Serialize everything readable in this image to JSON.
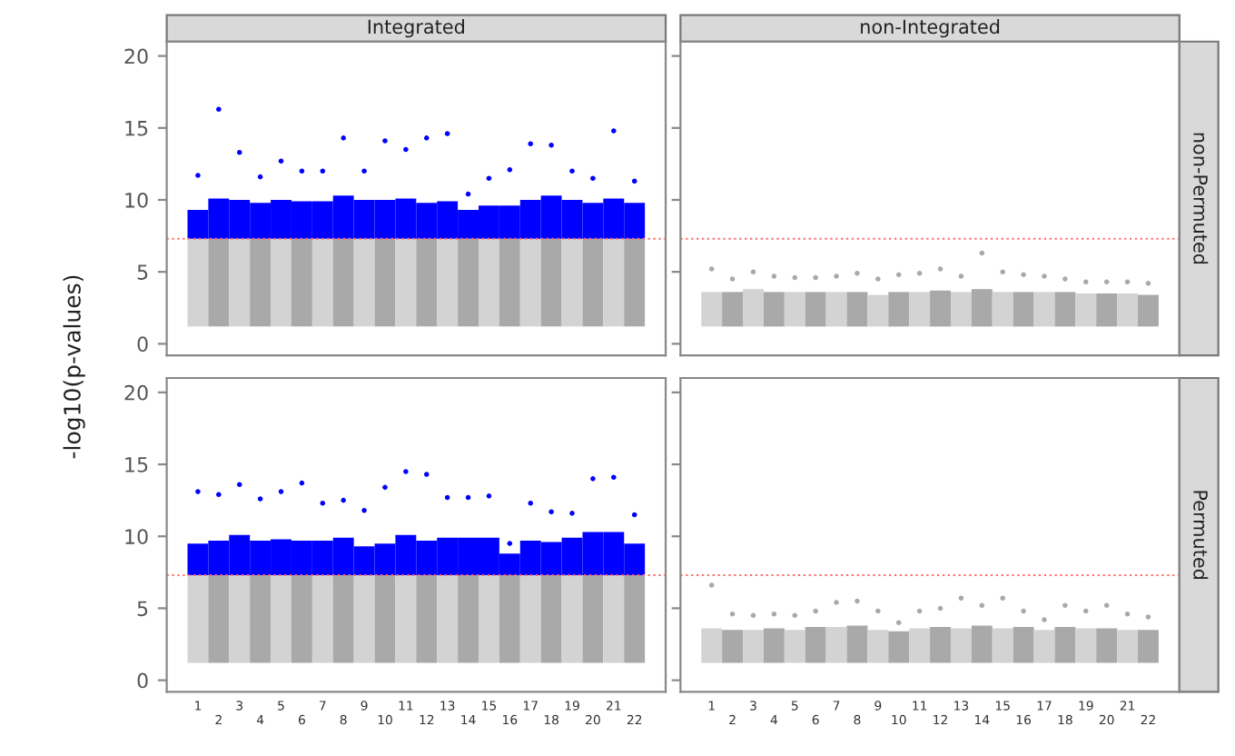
{
  "chart_data": [
    {
      "type": "bar",
      "title": "Integrated",
      "ylabel": "-log10(p-values)",
      "tick_labels": "y",
      "categories": [
        "1",
        "2",
        "3",
        "4",
        "5",
        "6",
        "7",
        "8",
        "9",
        "10",
        "11",
        "12",
        "13",
        "14",
        "15",
        "16",
        "17",
        "18",
        "19",
        "20",
        "21",
        "22"
      ],
      "ylim": [
        -0.8,
        21
      ],
      "yticks": [
        0,
        5,
        10,
        15,
        20
      ],
      "ref_lines": [
        {
          "axis": "y",
          "value": 7.3,
          "color": "#ff6a6a",
          "line_style": "dotted"
        }
      ],
      "series": [
        {
          "type": "bar",
          "base": [
            1.2,
            1.2,
            1.2,
            1.2,
            1.2,
            1.2,
            1.2,
            1.2,
            1.2,
            1.2,
            1.2,
            1.2,
            1.2,
            1.2,
            1.2,
            1.2,
            1.2,
            1.2,
            1.2,
            1.2,
            1.2,
            1.2
          ],
          "values": [
            6.1,
            6.1,
            6.1,
            6.1,
            6.1,
            6.1,
            6.1,
            6.1,
            6.1,
            6.1,
            6.1,
            6.1,
            6.1,
            6.1,
            6.1,
            6.1,
            6.1,
            6.1,
            6.1,
            6.1,
            6.1,
            6.1
          ],
          "colors": [
            "#d3d3d3",
            "#a9a9a9",
            "#d3d3d3",
            "#a9a9a9",
            "#d3d3d3",
            "#a9a9a9",
            "#d3d3d3",
            "#a9a9a9",
            "#d3d3d3",
            "#a9a9a9",
            "#d3d3d3",
            "#a9a9a9",
            "#d3d3d3",
            "#a9a9a9",
            "#d3d3d3",
            "#a9a9a9",
            "#d3d3d3",
            "#a9a9a9",
            "#d3d3d3",
            "#a9a9a9",
            "#d3d3d3",
            "#a9a9a9"
          ]
        },
        {
          "type": "bar",
          "color": "#0000ff",
          "base": [
            7.3,
            7.3,
            7.3,
            7.3,
            7.3,
            7.3,
            7.3,
            7.3,
            7.3,
            7.3,
            7.3,
            7.3,
            7.3,
            7.3,
            7.3,
            7.3,
            7.3,
            7.3,
            7.3,
            7.3,
            7.3,
            7.3
          ],
          "values": [
            2.0,
            2.8,
            2.7,
            2.5,
            2.7,
            2.6,
            2.6,
            3.0,
            2.7,
            2.7,
            2.8,
            2.5,
            2.6,
            2.0,
            2.3,
            2.3,
            2.7,
            3.0,
            2.7,
            2.5,
            2.8,
            2.5
          ]
        },
        {
          "type": "scatter",
          "color": "#0000ff",
          "values": [
            11.7,
            16.3,
            13.3,
            11.6,
            12.7,
            12.0,
            12.0,
            14.3,
            12.0,
            14.1,
            13.5,
            14.3,
            14.6,
            10.4,
            11.5,
            12.1,
            13.9,
            13.8,
            12.0,
            11.5,
            14.8,
            11.3
          ]
        }
      ]
    },
    {
      "type": "bar",
      "title": "non-Integrated",
      "annotations": [
        "non-Permuted"
      ],
      "tick_labels": false,
      "categories": [
        "1",
        "2",
        "3",
        "4",
        "5",
        "6",
        "7",
        "8",
        "9",
        "10",
        "11",
        "12",
        "13",
        "14",
        "15",
        "16",
        "17",
        "18",
        "19",
        "20",
        "21",
        "22"
      ],
      "ylim": [
        -0.8,
        21
      ],
      "yticks": [
        0,
        5,
        10,
        15,
        20
      ],
      "ref_lines": [
        {
          "axis": "y",
          "value": 7.3,
          "color": "#ff6a6a",
          "line_style": "dotted"
        }
      ],
      "series": [
        {
          "type": "bar",
          "base": [
            1.2,
            1.2,
            1.2,
            1.2,
            1.2,
            1.2,
            1.2,
            1.2,
            1.2,
            1.2,
            1.2,
            1.2,
            1.2,
            1.2,
            1.2,
            1.2,
            1.2,
            1.2,
            1.2,
            1.2,
            1.2,
            1.2
          ],
          "values": [
            2.4,
            2.4,
            2.6,
            2.4,
            2.4,
            2.4,
            2.4,
            2.4,
            2.2,
            2.4,
            2.4,
            2.5,
            2.4,
            2.6,
            2.4,
            2.4,
            2.4,
            2.4,
            2.3,
            2.3,
            2.3,
            2.2
          ],
          "colors": [
            "#d3d3d3",
            "#a9a9a9",
            "#d3d3d3",
            "#a9a9a9",
            "#d3d3d3",
            "#a9a9a9",
            "#d3d3d3",
            "#a9a9a9",
            "#d3d3d3",
            "#a9a9a9",
            "#d3d3d3",
            "#a9a9a9",
            "#d3d3d3",
            "#a9a9a9",
            "#d3d3d3",
            "#a9a9a9",
            "#d3d3d3",
            "#a9a9a9",
            "#d3d3d3",
            "#a9a9a9",
            "#d3d3d3",
            "#a9a9a9"
          ]
        },
        {
          "type": "scatter",
          "color": "#a9a9a9",
          "values": [
            5.2,
            4.5,
            5.0,
            4.7,
            4.6,
            4.6,
            4.7,
            4.9,
            4.5,
            4.8,
            4.9,
            5.2,
            4.7,
            6.3,
            5.0,
            4.8,
            4.7,
            4.5,
            4.3,
            4.3,
            4.3,
            4.2
          ]
        }
      ]
    },
    {
      "type": "bar",
      "tick_labels": true,
      "categories": [
        "1",
        "2",
        "3",
        "4",
        "5",
        "6",
        "7",
        "8",
        "9",
        "10",
        "11",
        "12",
        "13",
        "14",
        "15",
        "16",
        "17",
        "18",
        "19",
        "20",
        "21",
        "22"
      ],
      "ylim": [
        -0.8,
        21
      ],
      "yticks": [
        0,
        5,
        10,
        15,
        20
      ],
      "ref_lines": [
        {
          "axis": "y",
          "value": 7.3,
          "color": "#ff6a6a",
          "line_style": "dotted"
        }
      ],
      "series": [
        {
          "type": "bar",
          "base": [
            1.2,
            1.2,
            1.2,
            1.2,
            1.2,
            1.2,
            1.2,
            1.2,
            1.2,
            1.2,
            1.2,
            1.2,
            1.2,
            1.2,
            1.2,
            1.2,
            1.2,
            1.2,
            1.2,
            1.2,
            1.2,
            1.2
          ],
          "values": [
            6.1,
            6.1,
            6.1,
            6.1,
            6.1,
            6.1,
            6.1,
            6.1,
            6.1,
            6.1,
            6.1,
            6.1,
            6.1,
            6.1,
            6.1,
            6.1,
            6.1,
            6.1,
            6.1,
            6.1,
            6.1,
            6.1
          ],
          "colors": [
            "#d3d3d3",
            "#a9a9a9",
            "#d3d3d3",
            "#a9a9a9",
            "#d3d3d3",
            "#a9a9a9",
            "#d3d3d3",
            "#a9a9a9",
            "#d3d3d3",
            "#a9a9a9",
            "#d3d3d3",
            "#a9a9a9",
            "#d3d3d3",
            "#a9a9a9",
            "#d3d3d3",
            "#a9a9a9",
            "#d3d3d3",
            "#a9a9a9",
            "#d3d3d3",
            "#a9a9a9",
            "#d3d3d3",
            "#a9a9a9"
          ]
        },
        {
          "type": "bar",
          "color": "#0000ff",
          "base": [
            7.3,
            7.3,
            7.3,
            7.3,
            7.3,
            7.3,
            7.3,
            7.3,
            7.3,
            7.3,
            7.3,
            7.3,
            7.3,
            7.3,
            7.3,
            7.3,
            7.3,
            7.3,
            7.3,
            7.3,
            7.3,
            7.3
          ],
          "values": [
            2.2,
            2.4,
            2.8,
            2.4,
            2.5,
            2.4,
            2.4,
            2.6,
            2.0,
            2.2,
            2.8,
            2.4,
            2.6,
            2.6,
            2.6,
            1.5,
            2.4,
            2.3,
            2.6,
            3.0,
            3.0,
            2.2
          ]
        },
        {
          "type": "scatter",
          "color": "#0000ff",
          "values": [
            13.1,
            12.9,
            13.6,
            12.6,
            13.1,
            13.7,
            12.3,
            12.5,
            11.8,
            13.4,
            14.5,
            14.3,
            12.7,
            12.7,
            12.8,
            9.5,
            12.3,
            11.7,
            11.6,
            14.0,
            14.1,
            11.5
          ]
        }
      ]
    },
    {
      "type": "bar",
      "annotations": [
        "Permuted"
      ],
      "tick_labels": "x",
      "categories": [
        "1",
        "2",
        "3",
        "4",
        "5",
        "6",
        "7",
        "8",
        "9",
        "10",
        "11",
        "12",
        "13",
        "14",
        "15",
        "16",
        "17",
        "18",
        "19",
        "20",
        "21",
        "22"
      ],
      "ylim": [
        -0.8,
        21
      ],
      "yticks": [
        0,
        5,
        10,
        15,
        20
      ],
      "ref_lines": [
        {
          "axis": "y",
          "value": 7.3,
          "color": "#ff6a6a",
          "line_style": "dotted"
        }
      ],
      "series": [
        {
          "type": "bar",
          "base": [
            1.2,
            1.2,
            1.2,
            1.2,
            1.2,
            1.2,
            1.2,
            1.2,
            1.2,
            1.2,
            1.2,
            1.2,
            1.2,
            1.2,
            1.2,
            1.2,
            1.2,
            1.2,
            1.2,
            1.2,
            1.2,
            1.2
          ],
          "values": [
            2.4,
            2.3,
            2.3,
            2.4,
            2.3,
            2.5,
            2.5,
            2.6,
            2.3,
            2.2,
            2.4,
            2.5,
            2.4,
            2.6,
            2.4,
            2.5,
            2.3,
            2.5,
            2.4,
            2.4,
            2.3,
            2.3
          ],
          "colors": [
            "#d3d3d3",
            "#a9a9a9",
            "#d3d3d3",
            "#a9a9a9",
            "#d3d3d3",
            "#a9a9a9",
            "#d3d3d3",
            "#a9a9a9",
            "#d3d3d3",
            "#a9a9a9",
            "#d3d3d3",
            "#a9a9a9",
            "#d3d3d3",
            "#a9a9a9",
            "#d3d3d3",
            "#a9a9a9",
            "#d3d3d3",
            "#a9a9a9",
            "#d3d3d3",
            "#a9a9a9",
            "#d3d3d3",
            "#a9a9a9"
          ]
        },
        {
          "type": "scatter",
          "color": "#a9a9a9",
          "values": [
            6.6,
            4.6,
            4.5,
            4.6,
            4.5,
            4.8,
            5.4,
            5.5,
            4.8,
            4.0,
            4.8,
            5.0,
            5.7,
            5.2,
            5.7,
            4.8,
            4.2,
            5.2,
            4.8,
            5.2,
            4.6,
            4.4
          ]
        }
      ]
    }
  ]
}
